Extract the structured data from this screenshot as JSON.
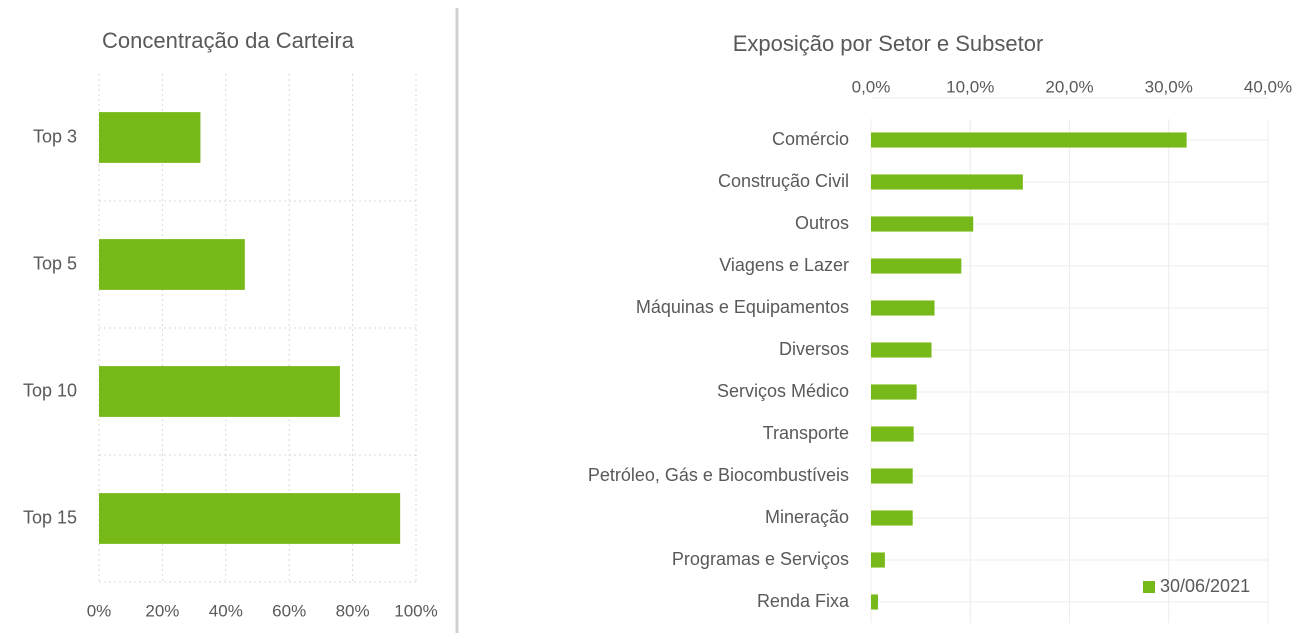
{
  "chart_data": [
    {
      "type": "bar",
      "orientation": "horizontal",
      "title": "Concentração da Carteira",
      "categories": [
        "Top 3",
        "Top 5",
        "Top 10",
        "Top 15"
      ],
      "values": [
        32,
        46,
        76,
        95
      ],
      "color": "#78b91a",
      "xlim": [
        0,
        100
      ],
      "xticks": [
        {
          "value": 0,
          "label": "0%"
        },
        {
          "value": 20,
          "label": "20%"
        },
        {
          "value": 40,
          "label": "40%"
        },
        {
          "value": 60,
          "label": "60%"
        },
        {
          "value": 80,
          "label": "80%"
        },
        {
          "value": 100,
          "label": "100%"
        }
      ],
      "grid": true
    },
    {
      "type": "bar",
      "orientation": "horizontal",
      "title": "Exposição por Setor e Subsetor",
      "categories": [
        "Comércio",
        "Construção Civil",
        "Outros",
        "Viagens e Lazer",
        "Máquinas e Equipamentos",
        "Diversos",
        "Serviços Médico",
        "Transporte",
        "Petróleo, Gás e Biocombustíveis",
        "Mineração",
        "Programas e Serviços",
        "Renda Fixa"
      ],
      "series": [
        {
          "name": "30/06/2021",
          "color": "#78b91a",
          "values": [
            31.8,
            15.3,
            10.3,
            9.1,
            6.4,
            6.1,
            4.6,
            4.3,
            4.2,
            4.2,
            1.4,
            0.7
          ]
        }
      ],
      "xlim": [
        0,
        40
      ],
      "xticks": [
        {
          "value": 0,
          "label": "0,0%"
        },
        {
          "value": 10,
          "label": "10,0%"
        },
        {
          "value": 20,
          "label": "20,0%"
        },
        {
          "value": 30,
          "label": "30,0%"
        },
        {
          "value": 40,
          "label": "40,0%"
        }
      ],
      "grid": true,
      "legend": "bottom-right"
    }
  ]
}
